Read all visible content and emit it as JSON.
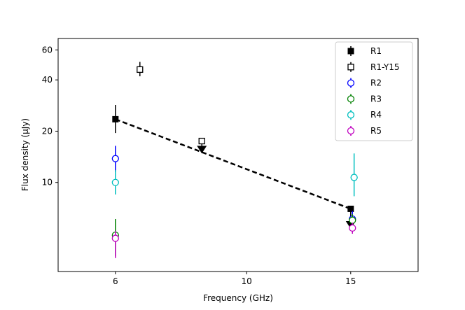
{
  "chart_data": {
    "type": "scatter",
    "xlabel": "Frequency (GHz)",
    "ylabel": "Flux density (μJy)",
    "x_scale": "log",
    "y_scale": "log",
    "xlim": [
      4.8,
      19.5
    ],
    "ylim": [
      3.0,
      70
    ],
    "x_ticks": [
      6,
      10,
      15
    ],
    "x_tick_labels": [
      "6",
      "10",
      "15"
    ],
    "y_ticks": [
      10,
      20,
      40,
      60
    ],
    "y_tick_labels": [
      "10",
      "20",
      "40",
      "60"
    ],
    "legend_position": "top-right",
    "grid": false,
    "series": [
      {
        "name": "R1",
        "marker": "filled-square",
        "color": "#000000",
        "points": [
          {
            "x": 6.0,
            "y": 23.5,
            "yerr_low": 19.5,
            "yerr_high": 28.5
          },
          {
            "x": 15.0,
            "y": 7.0,
            "upper_limit": true,
            "limit_to": 5.6
          }
        ]
      },
      {
        "name": "R1-Y15",
        "marker": "open-square",
        "color": "#000000",
        "points": [
          {
            "x": 6.6,
            "y": 46.0,
            "yerr_low": 42.0,
            "yerr_high": 51.0
          },
          {
            "x": 8.4,
            "y": 17.5,
            "upper_limit": true,
            "limit_to": 15.5
          }
        ]
      },
      {
        "name": "R2",
        "marker": "open-circle",
        "color": "#0000ff",
        "points": [
          {
            "x": 6.0,
            "y": 13.8,
            "yerr_low": 11.5,
            "yerr_high": 16.4
          },
          {
            "x": 15.1,
            "y": 6.1,
            "yerr_low": 5.6,
            "yerr_high": 6.8
          }
        ]
      },
      {
        "name": "R3",
        "marker": "open-circle",
        "color": "#008000",
        "points": [
          {
            "x": 6.0,
            "y": 4.9,
            "yerr_low": 3.7,
            "yerr_high": 6.1
          },
          {
            "x": 15.1,
            "y": 6.0,
            "yerr_low": 5.5,
            "yerr_high": 6.5
          }
        ]
      },
      {
        "name": "R4",
        "marker": "open-circle",
        "color": "#00bfbf",
        "points": [
          {
            "x": 6.0,
            "y": 10.0,
            "yerr_low": 8.5,
            "yerr_high": 11.8
          },
          {
            "x": 15.2,
            "y": 10.7,
            "yerr_low": 8.3,
            "yerr_high": 14.8
          }
        ]
      },
      {
        "name": "R5",
        "marker": "open-circle",
        "color": "#bf00bf",
        "points": [
          {
            "x": 6.0,
            "y": 4.7,
            "yerr_low": 3.6,
            "yerr_high": 5.2
          },
          {
            "x": 15.1,
            "y": 5.4,
            "yerr_low": 5.0,
            "yerr_high": 5.8
          }
        ]
      }
    ],
    "fit_line": {
      "style": "dashed",
      "color": "#000000",
      "x": [
        6.0,
        15.0
      ],
      "y": [
        23.5,
        7.0
      ]
    }
  }
}
